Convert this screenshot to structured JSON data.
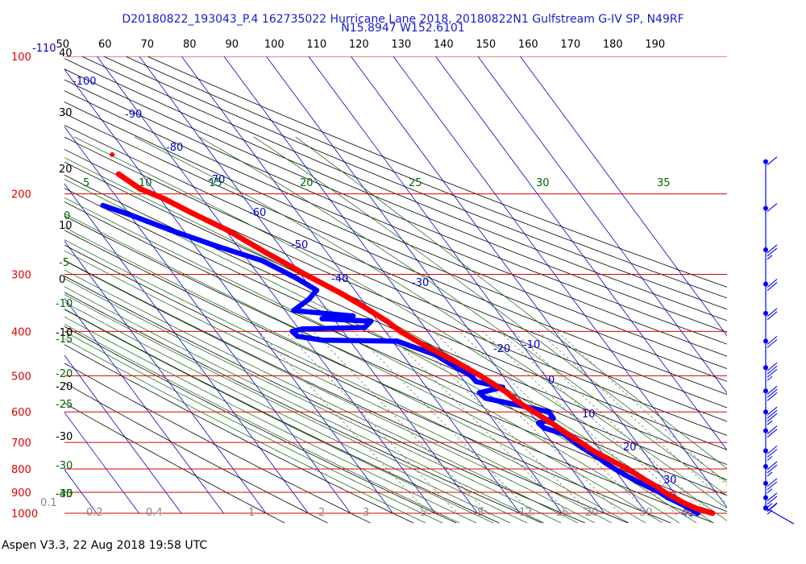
{
  "header": {
    "line1": "D20180822_193043_P.4 162735022 Hurricane Lane 2018, 20180822N1 Gulfstream G-IV SP, N49RF",
    "line2": "N15.8947 W152.6101"
  },
  "footer": {
    "text": "Aspen V3.3, 22 Aug 2018  19:58 UTC"
  },
  "colors": {
    "isobar": "#dd0000",
    "temperature": "#ff0000",
    "dewpoint": "#0000ff",
    "isotherm": "#0000cc",
    "dry_adiabat": "#000000",
    "mixing_ratio": "#888888",
    "moist_adiabat": "#006600",
    "barbs": "#0000ff"
  },
  "chart_data": {
    "type": "skew-t log-p diagram",
    "pressure_labels": [
      "100",
      "200",
      "300",
      "400",
      "500",
      "600",
      "700",
      "800",
      "900",
      "1000"
    ],
    "isobars_hpa": [
      100,
      200,
      300,
      400,
      500,
      600,
      700,
      800,
      900,
      1000
    ],
    "isotherm_labels": [
      "-110",
      "-100",
      "-90",
      "-80",
      "-70",
      "-60",
      "-50",
      "-40",
      "-30",
      "-20",
      "-10",
      "0",
      "10",
      "20",
      "30",
      "40"
    ],
    "top_axis_labels": [
      "50",
      "60",
      "70",
      "80",
      "90",
      "100",
      "110",
      "120",
      "130",
      "140",
      "150",
      "160",
      "170",
      "180",
      "190"
    ],
    "dry_adiabat_labels": [
      "40",
      "30",
      "20",
      "10",
      "0",
      "-10",
      "-20",
      "-30",
      "-40"
    ],
    "theta_e_labels": [
      "5",
      "10",
      "15",
      "20",
      "25",
      "30",
      "35"
    ],
    "moist_adiabat_labels": [
      "0",
      "-5",
      "-10",
      "-15",
      "-20",
      "-25",
      "-30",
      "-35",
      "-40"
    ],
    "mixing_ratio_labels": [
      "0.1",
      "0.2",
      "0.4",
      "1",
      "2",
      "3",
      "5",
      "8",
      "12",
      "16",
      "20",
      "30",
      "40"
    ],
    "temperature_profile": [
      {
        "p": 1000,
        "t": 25.5
      },
      {
        "p": 990,
        "t": 24.3
      },
      {
        "p": 975,
        "t": 22.5
      },
      {
        "p": 950,
        "t": 20.6
      },
      {
        "p": 925,
        "t": 19.3
      },
      {
        "p": 900,
        "t": 17.9
      },
      {
        "p": 875,
        "t": 17.0
      },
      {
        "p": 850,
        "t": 15.7
      },
      {
        "p": 800,
        "t": 13.2
      },
      {
        "p": 760,
        "t": 10.4
      },
      {
        "p": 730,
        "t": 8.2
      },
      {
        "p": 700,
        "t": 6.8
      },
      {
        "p": 660,
        "t": 4.6
      },
      {
        "p": 630,
        "t": 3.0
      },
      {
        "p": 600,
        "t": 1.1
      },
      {
        "p": 570,
        "t": -1.0
      },
      {
        "p": 540,
        "t": -2.2
      },
      {
        "p": 520,
        "t": -3.8
      },
      {
        "p": 500,
        "t": -5.3
      },
      {
        "p": 460,
        "t": -9.3
      },
      {
        "p": 430,
        "t": -13.1
      },
      {
        "p": 400,
        "t": -16.4
      },
      {
        "p": 380,
        "t": -17.8
      },
      {
        "p": 350,
        "t": -21.1
      },
      {
        "p": 330,
        "t": -23.8
      },
      {
        "p": 300,
        "t": -29.0
      },
      {
        "p": 270,
        "t": -34.2
      },
      {
        "p": 240,
        "t": -39.6
      },
      {
        "p": 220,
        "t": -45.0
      },
      {
        "p": 205,
        "t": -49.0
      },
      {
        "p": 195,
        "t": -53.0
      },
      {
        "p": 181,
        "t": -55.5
      }
    ],
    "dewpoint_profile": [
      {
        "p": 1000,
        "td": 22.0
      },
      {
        "p": 975,
        "td": 21.0
      },
      {
        "p": 950,
        "td": 19.4
      },
      {
        "p": 925,
        "td": 17.7
      },
      {
        "p": 900,
        "td": 16.7
      },
      {
        "p": 875,
        "td": 14.9
      },
      {
        "p": 850,
        "td": 13.2
      },
      {
        "p": 825,
        "td": 11.6
      },
      {
        "p": 800,
        "td": 10.2
      },
      {
        "p": 775,
        "td": 9.0
      },
      {
        "p": 750,
        "td": 8.1
      },
      {
        "p": 720,
        "td": 6.3
      },
      {
        "p": 700,
        "td": 5.5
      },
      {
        "p": 670,
        "td": 4.1
      },
      {
        "p": 650,
        "td": 0.6
      },
      {
        "p": 635,
        "td": 0.2
      },
      {
        "p": 620,
        "td": 4.5
      },
      {
        "p": 600,
        "td": 4.6
      },
      {
        "p": 580,
        "td": -1.5
      },
      {
        "p": 560,
        "td": -8.0
      },
      {
        "p": 545,
        "td": -8.5
      },
      {
        "p": 530,
        "td": -2.0
      },
      {
        "p": 515,
        "td": -7.3
      },
      {
        "p": 500,
        "td": -7.5
      },
      {
        "p": 470,
        "td": -10.4
      },
      {
        "p": 450,
        "td": -12.2
      },
      {
        "p": 420,
        "td": -18.9
      },
      {
        "p": 418,
        "td": -36.4
      },
      {
        "p": 410,
        "td": -41.6
      },
      {
        "p": 400,
        "td": -42.0
      },
      {
        "p": 395,
        "td": -39.2
      },
      {
        "p": 392,
        "td": -24.2
      },
      {
        "p": 380,
        "td": -21.6
      },
      {
        "p": 375,
        "td": -32.7
      },
      {
        "p": 370,
        "td": -24.9
      },
      {
        "p": 360,
        "td": -38.0
      },
      {
        "p": 340,
        "td": -32.4
      },
      {
        "p": 325,
        "td": -29.0
      },
      {
        "p": 305,
        "td": -31.8
      },
      {
        "p": 280,
        "td": -36.7
      },
      {
        "p": 260,
        "td": -45.0
      },
      {
        "p": 240,
        "td": -53.0
      },
      {
        "p": 222,
        "td": -60.0
      },
      {
        "p": 212,
        "td": -64.7
      }
    ],
    "isolated_points": [
      {
        "p": 164,
        "t": -53.6
      }
    ],
    "wind_barbs": [
      {
        "p": 170,
        "speed": 10
      },
      {
        "p": 215,
        "speed": 10
      },
      {
        "p": 265,
        "speed": 15
      },
      {
        "p": 315,
        "speed": 20
      },
      {
        "p": 365,
        "speed": 20
      },
      {
        "p": 420,
        "speed": 20
      },
      {
        "p": 480,
        "speed": 25
      },
      {
        "p": 540,
        "speed": 30
      },
      {
        "p": 600,
        "speed": 25
      },
      {
        "p": 660,
        "speed": 20
      },
      {
        "p": 730,
        "speed": 15
      },
      {
        "p": 790,
        "speed": 15
      },
      {
        "p": 860,
        "speed": 15
      },
      {
        "p": 925,
        "speed": 15
      },
      {
        "p": 975,
        "speed": 10
      },
      {
        "p": 1005,
        "speed": 5
      }
    ]
  }
}
